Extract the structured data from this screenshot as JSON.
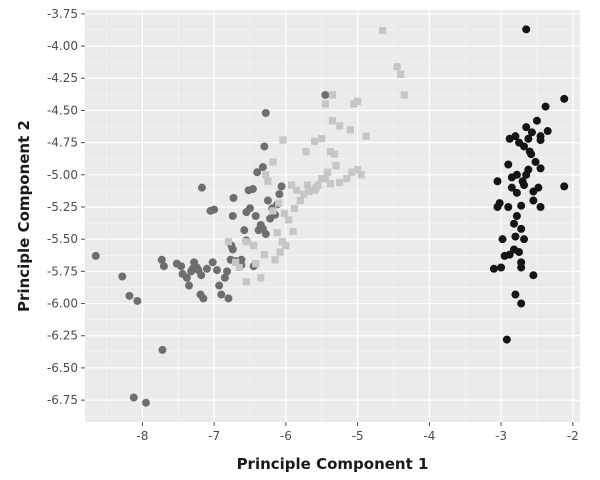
{
  "chart_data": {
    "type": "scatter",
    "title": "",
    "xlabel": "Principle Component 1",
    "ylabel": "Principle Component 2",
    "xlim": [
      -8.8,
      -1.9
    ],
    "ylim": [
      -6.92,
      -3.72
    ],
    "xticks": [
      -8,
      -7,
      -6,
      -5,
      -4,
      -3,
      -2
    ],
    "xtick_labels": [
      "-8",
      "-7",
      "-6",
      "-5",
      "-4",
      "-3",
      "-2"
    ],
    "yticks": [
      -3.75,
      -4.0,
      -4.25,
      -4.5,
      -4.75,
      -5.0,
      -5.25,
      -5.5,
      -5.75,
      -6.0,
      -6.25,
      -6.5,
      -6.75
    ],
    "ytick_labels": [
      "-3.75",
      "-4.00",
      "-4.25",
      "-4.50",
      "-4.75",
      "-5.00",
      "-5.25",
      "-5.50",
      "-5.75",
      "-6.00",
      "-6.25",
      "-6.50",
      "-6.75"
    ],
    "grid": true,
    "background": "#ebebeb",
    "legend": "none",
    "series": [
      {
        "marker": "circle",
        "color": "#6e6e6e",
        "points": [
          [
            -8.65,
            -5.63
          ],
          [
            -8.28,
            -5.79
          ],
          [
            -8.18,
            -5.94
          ],
          [
            -8.07,
            -5.98
          ],
          [
            -7.72,
            -6.36
          ],
          [
            -8.12,
            -6.73
          ],
          [
            -7.95,
            -6.77
          ],
          [
            -7.73,
            -5.66
          ],
          [
            -7.7,
            -5.71
          ],
          [
            -7.52,
            -5.69
          ],
          [
            -7.46,
            -5.71
          ],
          [
            -7.38,
            -5.8
          ],
          [
            -7.35,
            -5.86
          ],
          [
            -7.32,
            -5.75
          ],
          [
            -7.28,
            -5.68
          ],
          [
            -7.24,
            -5.72
          ],
          [
            -7.22,
            -5.74
          ],
          [
            -7.19,
            -5.93
          ],
          [
            -7.18,
            -5.78
          ],
          [
            -7.15,
            -5.96
          ],
          [
            -7.1,
            -5.73
          ],
          [
            -7.17,
            -5.1
          ],
          [
            -7.05,
            -5.28
          ],
          [
            -7.0,
            -5.27
          ],
          [
            -7.02,
            -5.68
          ],
          [
            -6.96,
            -5.74
          ],
          [
            -6.93,
            -5.86
          ],
          [
            -6.85,
            -5.8
          ],
          [
            -6.82,
            -5.75
          ],
          [
            -6.77,
            -5.66
          ],
          [
            -6.74,
            -5.58
          ],
          [
            -6.7,
            -5.67
          ],
          [
            -6.66,
            -5.68
          ],
          [
            -6.76,
            -5.55
          ],
          [
            -6.74,
            -5.32
          ],
          [
            -6.73,
            -5.18
          ],
          [
            -6.62,
            -5.7
          ],
          [
            -6.58,
            -5.43
          ],
          [
            -6.55,
            -5.29
          ],
          [
            -6.52,
            -5.12
          ],
          [
            -6.5,
            -5.26
          ],
          [
            -6.46,
            -5.11
          ],
          [
            -6.42,
            -5.32
          ],
          [
            -6.38,
            -5.43
          ],
          [
            -6.35,
            -5.39
          ],
          [
            -6.32,
            -5.42
          ],
          [
            -6.28,
            -5.46
          ],
          [
            -6.25,
            -5.2
          ],
          [
            -6.22,
            -5.34
          ],
          [
            -6.19,
            -5.26
          ],
          [
            -6.15,
            -5.31
          ],
          [
            -6.12,
            -5.23
          ],
          [
            -6.09,
            -5.15
          ],
          [
            -6.06,
            -5.09
          ],
          [
            -6.55,
            -5.51
          ],
          [
            -6.45,
            -5.71
          ],
          [
            -6.4,
            -4.98
          ],
          [
            -6.32,
            -4.94
          ],
          [
            -6.3,
            -4.78
          ],
          [
            -6.28,
            -4.52
          ],
          [
            -6.62,
            -5.66
          ],
          [
            -6.8,
            -5.96
          ],
          [
            -6.9,
            -5.93
          ],
          [
            -7.44,
            -5.77
          ],
          [
            -7.3,
            -5.73
          ],
          [
            -5.45,
            -4.38
          ]
        ]
      },
      {
        "marker": "square",
        "color": "#c6c6c6",
        "points": [
          [
            -4.65,
            -3.88
          ],
          [
            -4.45,
            -4.16
          ],
          [
            -4.4,
            -4.22
          ],
          [
            -4.35,
            -4.38
          ],
          [
            -5.35,
            -4.38
          ],
          [
            -5.45,
            -4.45
          ],
          [
            -5.05,
            -4.45
          ],
          [
            -5.0,
            -4.43
          ],
          [
            -4.88,
            -4.7
          ],
          [
            -5.35,
            -4.58
          ],
          [
            -5.25,
            -4.62
          ],
          [
            -5.1,
            -4.65
          ],
          [
            -5.5,
            -4.72
          ],
          [
            -5.6,
            -4.74
          ],
          [
            -5.38,
            -4.82
          ],
          [
            -5.32,
            -4.84
          ],
          [
            -5.3,
            -4.93
          ],
          [
            -5.42,
            -4.98
          ],
          [
            -5.5,
            -5.03
          ],
          [
            -5.55,
            -5.08
          ],
          [
            -5.6,
            -5.12
          ],
          [
            -5.25,
            -5.06
          ],
          [
            -5.15,
            -5.03
          ],
          [
            -5.08,
            -4.98
          ],
          [
            -5.0,
            -4.96
          ],
          [
            -4.95,
            -5.0
          ],
          [
            -5.45,
            -5.03
          ],
          [
            -5.38,
            -5.07
          ],
          [
            -5.7,
            -5.08
          ],
          [
            -5.85,
            -5.12
          ],
          [
            -5.92,
            -5.08
          ],
          [
            -5.8,
            -5.2
          ],
          [
            -5.75,
            -5.15
          ],
          [
            -6.1,
            -5.22
          ],
          [
            -6.18,
            -5.28
          ],
          [
            -6.02,
            -5.3
          ],
          [
            -5.88,
            -5.26
          ],
          [
            -5.96,
            -5.35
          ],
          [
            -5.9,
            -5.44
          ],
          [
            -6.05,
            -5.52
          ],
          [
            -6.12,
            -5.45
          ],
          [
            -6.08,
            -5.6
          ],
          [
            -6.15,
            -5.66
          ],
          [
            -6.0,
            -5.55
          ],
          [
            -6.3,
            -5.62
          ],
          [
            -6.45,
            -5.55
          ],
          [
            -6.55,
            -5.52
          ],
          [
            -6.8,
            -5.52
          ],
          [
            -6.65,
            -5.72
          ],
          [
            -6.7,
            -5.68
          ],
          [
            -6.55,
            -5.83
          ],
          [
            -6.42,
            -5.69
          ],
          [
            -6.35,
            -5.8
          ],
          [
            -6.28,
            -5.0
          ],
          [
            -6.18,
            -4.9
          ],
          [
            -6.25,
            -5.05
          ],
          [
            -6.04,
            -4.73
          ],
          [
            -5.72,
            -4.82
          ],
          [
            -5.68,
            -5.13
          ],
          [
            -5.58,
            -5.1
          ]
        ]
      },
      {
        "marker": "circle",
        "color": "#151515",
        "points": [
          [
            -2.65,
            -3.87
          ],
          [
            -2.12,
            -4.41
          ],
          [
            -2.38,
            -4.47
          ],
          [
            -2.5,
            -4.58
          ],
          [
            -2.45,
            -4.7
          ],
          [
            -2.35,
            -4.66
          ],
          [
            -2.45,
            -4.73
          ],
          [
            -2.57,
            -4.67
          ],
          [
            -2.62,
            -4.72
          ],
          [
            -2.65,
            -4.63
          ],
          [
            -2.68,
            -4.78
          ],
          [
            -2.6,
            -4.82
          ],
          [
            -2.75,
            -4.75
          ],
          [
            -2.8,
            -4.7
          ],
          [
            -2.88,
            -4.72
          ],
          [
            -2.52,
            -4.9
          ],
          [
            -2.62,
            -4.96
          ],
          [
            -2.65,
            -5.0
          ],
          [
            -2.7,
            -5.05
          ],
          [
            -2.78,
            -5.0
          ],
          [
            -2.85,
            -5.02
          ],
          [
            -2.9,
            -4.92
          ],
          [
            -3.05,
            -5.05
          ],
          [
            -2.85,
            -5.1
          ],
          [
            -2.78,
            -5.14
          ],
          [
            -2.68,
            -5.08
          ],
          [
            -2.55,
            -5.13
          ],
          [
            -2.48,
            -5.1
          ],
          [
            -2.55,
            -5.2
          ],
          [
            -2.45,
            -5.25
          ],
          [
            -2.72,
            -5.24
          ],
          [
            -2.78,
            -5.32
          ],
          [
            -2.9,
            -5.25
          ],
          [
            -3.02,
            -5.22
          ],
          [
            -3.05,
            -5.25
          ],
          [
            -2.82,
            -5.38
          ],
          [
            -2.72,
            -5.42
          ],
          [
            -2.8,
            -5.48
          ],
          [
            -2.68,
            -5.5
          ],
          [
            -2.75,
            -5.6
          ],
          [
            -2.72,
            -5.68
          ],
          [
            -2.98,
            -5.5
          ],
          [
            -2.82,
            -5.58
          ],
          [
            -3.0,
            -5.72
          ],
          [
            -3.1,
            -5.73
          ],
          [
            -2.95,
            -5.63
          ],
          [
            -2.88,
            -5.62
          ],
          [
            -2.72,
            -5.72
          ],
          [
            -2.55,
            -5.78
          ],
          [
            -2.8,
            -5.93
          ],
          [
            -2.72,
            -6.0
          ],
          [
            -2.92,
            -6.28
          ],
          [
            -2.12,
            -5.09
          ],
          [
            -2.45,
            -4.95
          ],
          [
            -2.58,
            -4.84
          ]
        ]
      }
    ]
  }
}
